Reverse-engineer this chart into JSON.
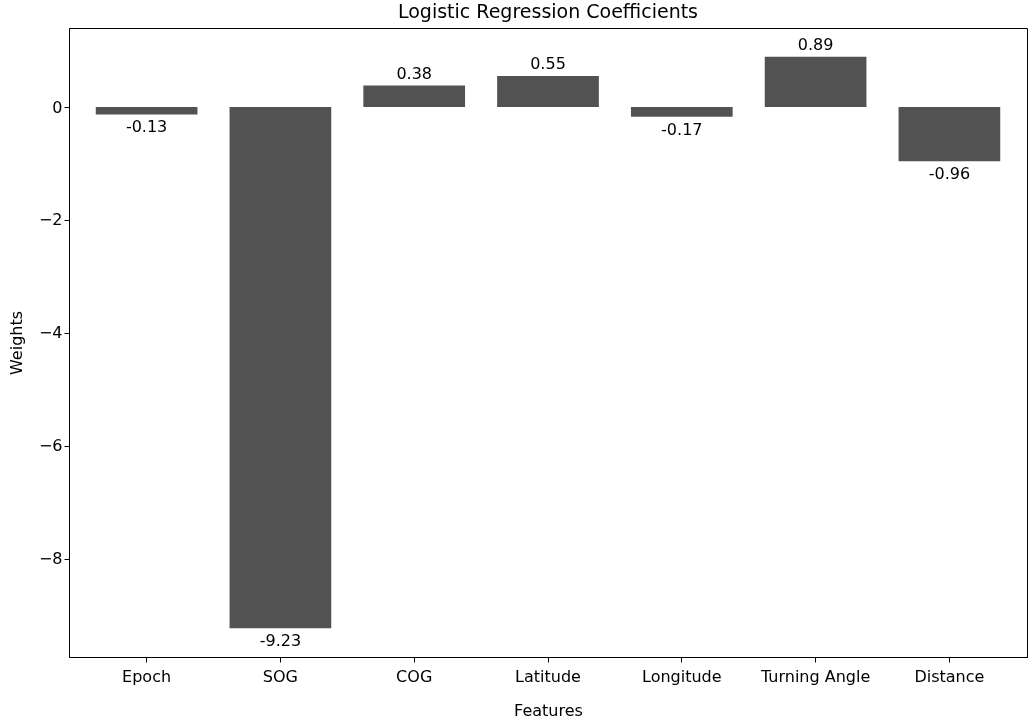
{
  "chart_data": {
    "type": "bar",
    "title": "Logistic Regression Coefficients",
    "xlabel": "Features",
    "ylabel": "Weights",
    "categories": [
      "Epoch",
      "SOG",
      "COG",
      "Latitude",
      "Longitude",
      "Turning Angle",
      "Distance"
    ],
    "values": [
      -0.13,
      -9.23,
      0.38,
      0.55,
      -0.17,
      0.89,
      -0.96
    ],
    "color": "#525252",
    "data_labels": true,
    "grid": false,
    "ylim": [
      -9.74,
      1.4
    ],
    "yticks": [
      {
        "value": -8,
        "label": "−8"
      },
      {
        "value": -6,
        "label": "−6"
      },
      {
        "value": -4,
        "label": "−4"
      },
      {
        "value": -2,
        "label": "−2"
      },
      0
    ]
  }
}
